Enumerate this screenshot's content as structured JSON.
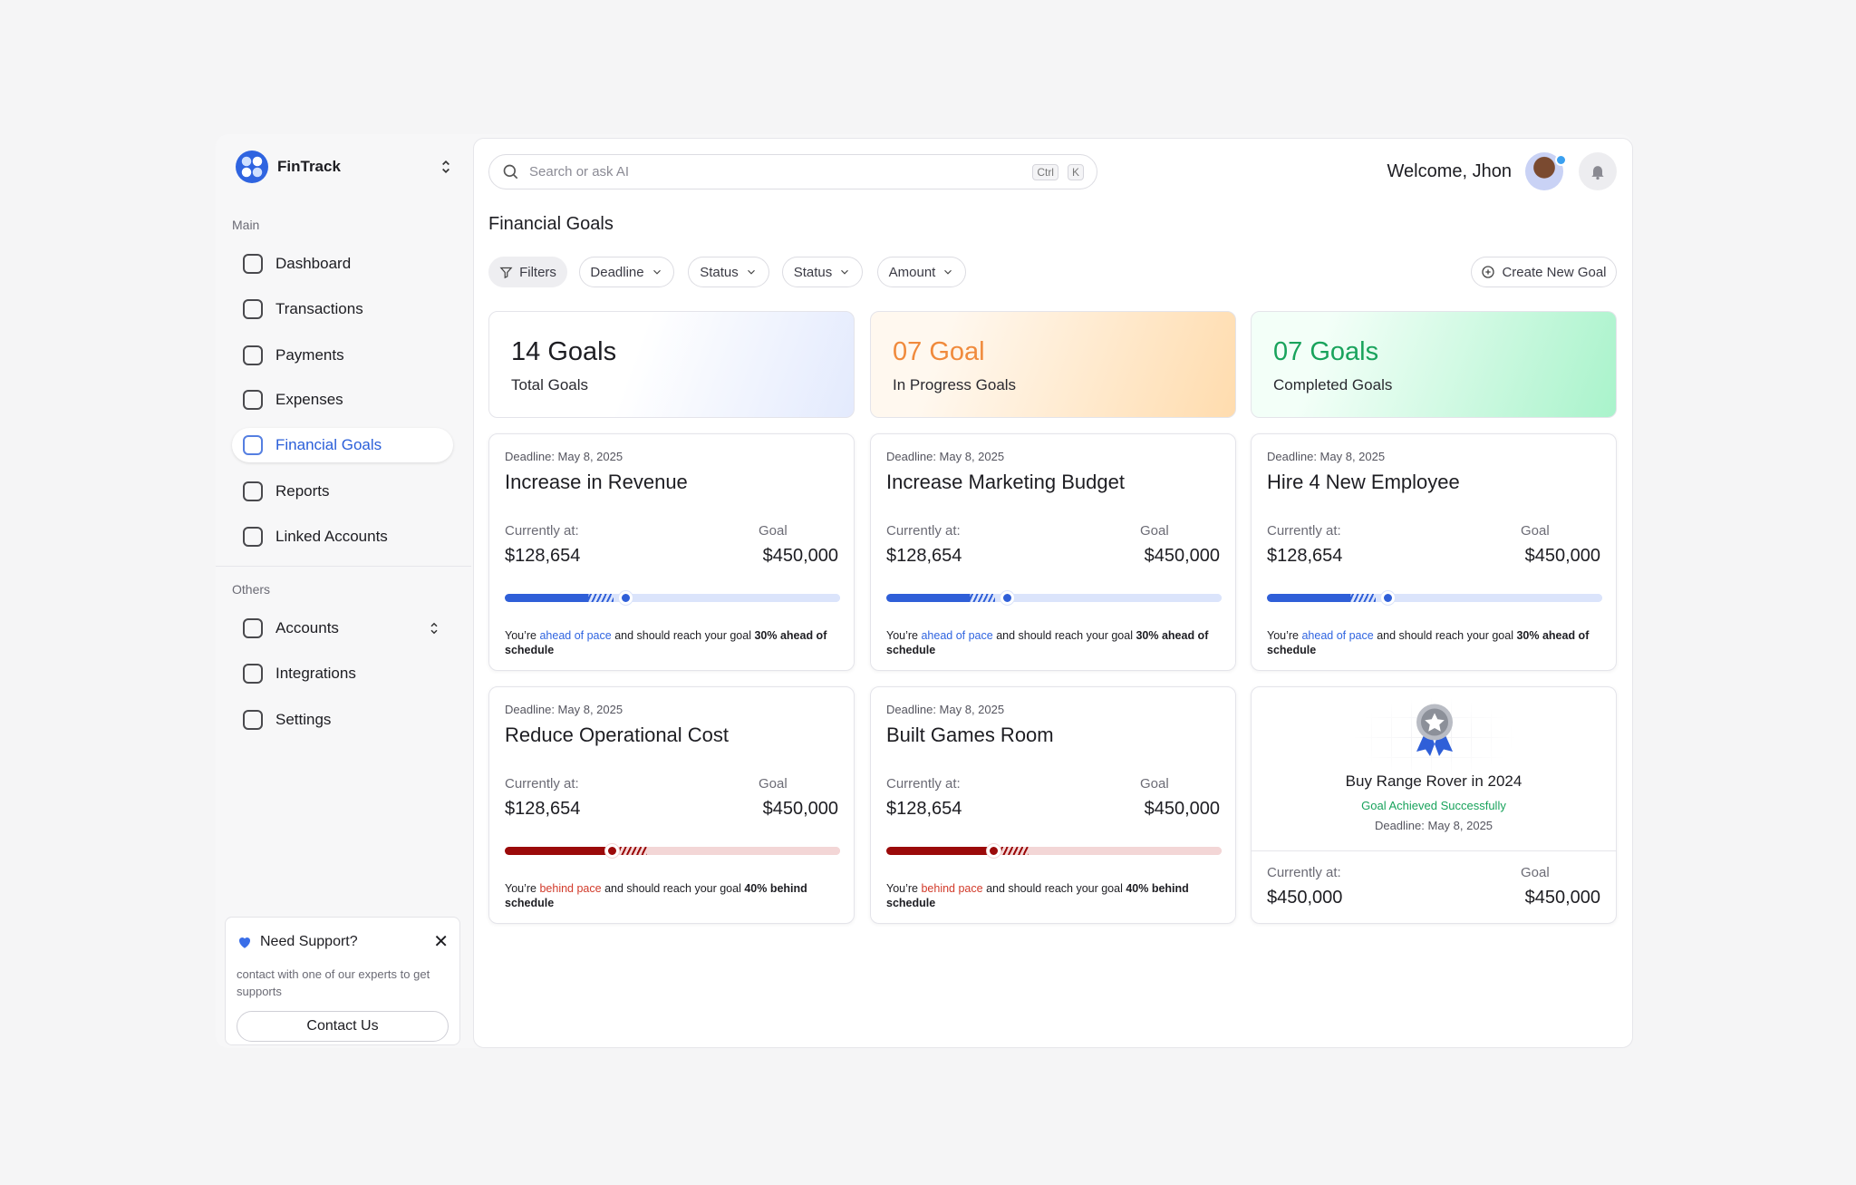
{
  "sidebar": {
    "brand": "FinTrack",
    "sections": [
      {
        "title": "Main",
        "items": [
          "Dashboard",
          "Transactions",
          "Payments",
          "Expenses",
          "Financial Goals",
          "Reports",
          "Linked Accounts"
        ]
      },
      {
        "title": "Others",
        "items": [
          "Accounts",
          "Integrations",
          "Settings"
        ]
      }
    ],
    "support": {
      "title": "Need Support?",
      "text": "contact with one of our experts to get supports",
      "button": "Contact Us"
    }
  },
  "header": {
    "search_placeholder": "Search or ask AI",
    "shortcut": [
      "Ctrl",
      "K"
    ],
    "welcome": "Welcome, Jhon"
  },
  "page": {
    "title": "Financial Goals",
    "filters": [
      "Filters",
      "Deadline",
      "Status",
      "Status",
      "Amount"
    ],
    "create_button": "Create New Goal"
  },
  "summary": [
    {
      "value": "14 Goals",
      "label": "Total Goals"
    },
    {
      "value": "07 Goal",
      "label": "In Progress Goals"
    },
    {
      "value": "07 Goals",
      "label": "Completed Goals"
    }
  ],
  "goals": [
    {
      "deadline": "Deadline: May 8, 2025",
      "title": "Increase in Revenue",
      "current_label": "Currently at:",
      "current": "$128,654",
      "goal_label": "Goal",
      "goal": "$450,000",
      "pace": "ahead",
      "note": [
        "You’re ",
        "ahead of pace",
        " and should reach your goal ",
        "30% ahead of schedule"
      ]
    },
    {
      "deadline": "Deadline: May 8, 2025",
      "title": "Increase Marketing Budget",
      "current_label": "Currently at:",
      "current": "$128,654",
      "goal_label": "Goal",
      "goal": "$450,000",
      "pace": "ahead",
      "note": [
        "You’re ",
        "ahead of pace",
        " and should reach your goal ",
        "30% ahead of schedule"
      ]
    },
    {
      "deadline": "Deadline: May 8, 2025",
      "title": "Hire 4 New Employee",
      "current_label": "Currently at:",
      "current": "$128,654",
      "goal_label": "Goal",
      "goal": "$450,000",
      "pace": "ahead",
      "note": [
        "You’re ",
        "ahead of pace",
        " and should reach your goal ",
        "30% ahead of schedule"
      ]
    },
    {
      "deadline": "Deadline: May 8, 2025",
      "title": "Reduce Operational Cost",
      "current_label": "Currently at:",
      "current": "$128,654",
      "goal_label": "Goal",
      "goal": "$450,000",
      "pace": "behind",
      "note": [
        "You’re ",
        "behind pace",
        " and should reach your goal ",
        "40% behind schedule"
      ]
    },
    {
      "deadline": "Deadline: May 8, 2025",
      "title": "Built Games Room",
      "current_label": "Currently at:",
      "current": "$128,654",
      "goal_label": "Goal",
      "goal": "$450,000",
      "pace": "behind",
      "note": [
        "You’re ",
        "behind pace",
        " and should reach your goal ",
        "40% behind schedule"
      ]
    }
  ],
  "achieved": {
    "title": "Buy Range Rover in 2024",
    "status": "Goal Achieved Successfully",
    "deadline": "Deadline: May 8, 2025",
    "current_label": "Currently at:",
    "current": "$450,000",
    "goal_label": "Goal",
    "goal": "$450,000"
  }
}
